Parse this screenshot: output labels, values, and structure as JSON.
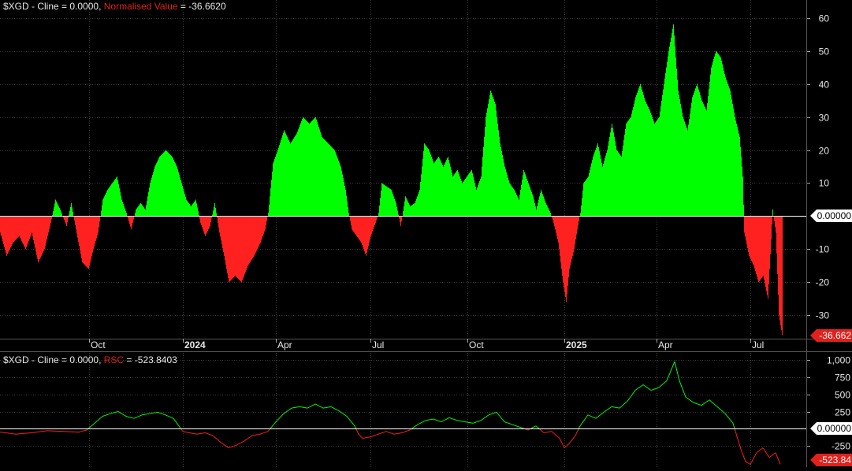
{
  "top_panel": {
    "symbol_label": "$XGD - Cline = 0.0000,",
    "indicator_name": "Normalised Value",
    "indicator_value_text": "= -36.6620",
    "zero_tag": "0.00000",
    "last_tag": "-36.662",
    "y_ticks": [
      "60",
      "50",
      "40",
      "30",
      "20",
      "10",
      "-10",
      "-20",
      "-30"
    ]
  },
  "bottom_panel": {
    "symbol_label": "$XGD - Cline = 0.0000,",
    "indicator_name": "RSC",
    "indicator_value_text": "= -523.8403",
    "zero_tag": "0.00000",
    "last_tag": "-523.84",
    "y_ticks": [
      "1,000",
      "750",
      "500",
      "250",
      "-250"
    ]
  },
  "colors": {
    "positive": "#00ff00",
    "negative": "#ff2020",
    "background": "#000000",
    "grid": "#3a3a3a",
    "zero_line": "#ffffff",
    "text": "#e8e8e8",
    "indicator_label": "#e0211d"
  },
  "chart_data": [
    {
      "type": "bar",
      "name": "Normalised Value",
      "x_labels": [
        "Oct",
        "2024",
        "Apr",
        "Jul",
        "Oct",
        "2025",
        "Apr",
        "Jul"
      ],
      "ylim": [
        -38,
        63
      ],
      "grid": true,
      "positive_color": "green",
      "negative_color": "red",
      "anchor_points": [
        [
          0,
          -5
        ],
        [
          8,
          -12
        ],
        [
          16,
          -8
        ],
        [
          24,
          -6
        ],
        [
          32,
          -10
        ],
        [
          40,
          -5
        ],
        [
          48,
          -14
        ],
        [
          56,
          -10
        ],
        [
          64,
          -2
        ],
        [
          70,
          5
        ],
        [
          76,
          2
        ],
        [
          84,
          -3
        ],
        [
          90,
          4
        ],
        [
          96,
          -4
        ],
        [
          104,
          -14
        ],
        [
          112,
          -16
        ],
        [
          118,
          -10
        ],
        [
          124,
          -5
        ],
        [
          130,
          5
        ],
        [
          136,
          8
        ],
        [
          142,
          10
        ],
        [
          148,
          12
        ],
        [
          154,
          5
        ],
        [
          160,
          1
        ],
        [
          166,
          -4
        ],
        [
          172,
          2
        ],
        [
          178,
          4
        ],
        [
          184,
          2
        ],
        [
          190,
          10
        ],
        [
          196,
          15
        ],
        [
          202,
          18
        ],
        [
          210,
          20
        ],
        [
          218,
          18
        ],
        [
          224,
          15
        ],
        [
          230,
          10
        ],
        [
          236,
          5
        ],
        [
          242,
          3
        ],
        [
          248,
          5
        ],
        [
          254,
          -2
        ],
        [
          260,
          -6
        ],
        [
          266,
          -3
        ],
        [
          272,
          4
        ],
        [
          278,
          -5
        ],
        [
          284,
          -12
        ],
        [
          290,
          -20
        ],
        [
          298,
          -18
        ],
        [
          306,
          -20
        ],
        [
          314,
          -15
        ],
        [
          322,
          -12
        ],
        [
          330,
          -8
        ],
        [
          336,
          -4
        ],
        [
          340,
          1
        ],
        [
          346,
          16
        ],
        [
          352,
          20
        ],
        [
          360,
          26
        ],
        [
          368,
          22
        ],
        [
          376,
          25
        ],
        [
          384,
          30
        ],
        [
          392,
          28
        ],
        [
          400,
          30
        ],
        [
          408,
          24
        ],
        [
          416,
          22
        ],
        [
          424,
          20
        ],
        [
          432,
          15
        ],
        [
          438,
          8
        ],
        [
          442,
          1
        ],
        [
          446,
          -4
        ],
        [
          452,
          -6
        ],
        [
          458,
          -8
        ],
        [
          464,
          -12
        ],
        [
          470,
          -6
        ],
        [
          476,
          -2
        ],
        [
          480,
          1
        ],
        [
          484,
          10
        ],
        [
          490,
          9
        ],
        [
          496,
          8
        ],
        [
          502,
          4
        ],
        [
          508,
          -3
        ],
        [
          514,
          6
        ],
        [
          520,
          3
        ],
        [
          526,
          4
        ],
        [
          532,
          8
        ],
        [
          538,
          22
        ],
        [
          544,
          20
        ],
        [
          550,
          16
        ],
        [
          556,
          18
        ],
        [
          562,
          15
        ],
        [
          568,
          18
        ],
        [
          574,
          12
        ],
        [
          580,
          14
        ],
        [
          586,
          10
        ],
        [
          592,
          12
        ],
        [
          598,
          14
        ],
        [
          604,
          8
        ],
        [
          610,
          12
        ],
        [
          616,
          30
        ],
        [
          622,
          38
        ],
        [
          628,
          34
        ],
        [
          634,
          22
        ],
        [
          640,
          15
        ],
        [
          646,
          10
        ],
        [
          652,
          8
        ],
        [
          658,
          5
        ],
        [
          664,
          14
        ],
        [
          670,
          10
        ],
        [
          676,
          6
        ],
        [
          680,
          2
        ],
        [
          686,
          8
        ],
        [
          692,
          4
        ],
        [
          698,
          1
        ],
        [
          702,
          -2
        ],
        [
          708,
          -8
        ],
        [
          714,
          -20
        ],
        [
          718,
          -26
        ],
        [
          722,
          -16
        ],
        [
          728,
          -10
        ],
        [
          732,
          -4
        ],
        [
          736,
          1
        ],
        [
          740,
          10
        ],
        [
          746,
          12
        ],
        [
          752,
          18
        ],
        [
          758,
          22
        ],
        [
          764,
          15
        ],
        [
          770,
          20
        ],
        [
          776,
          28
        ],
        [
          782,
          20
        ],
        [
          788,
          18
        ],
        [
          794,
          28
        ],
        [
          800,
          30
        ],
        [
          806,
          36
        ],
        [
          812,
          40
        ],
        [
          818,
          35
        ],
        [
          824,
          32
        ],
        [
          830,
          28
        ],
        [
          836,
          30
        ],
        [
          842,
          40
        ],
        [
          848,
          50
        ],
        [
          854,
          58
        ],
        [
          860,
          38
        ],
        [
          866,
          30
        ],
        [
          872,
          26
        ],
        [
          878,
          36
        ],
        [
          884,
          40
        ],
        [
          890,
          35
        ],
        [
          896,
          32
        ],
        [
          902,
          45
        ],
        [
          908,
          50
        ],
        [
          914,
          48
        ],
        [
          920,
          42
        ],
        [
          926,
          38
        ],
        [
          932,
          30
        ],
        [
          938,
          24
        ],
        [
          942,
          12
        ],
        [
          944,
          -5
        ],
        [
          950,
          -12
        ],
        [
          956,
          -15
        ],
        [
          962,
          -20
        ],
        [
          968,
          -18
        ],
        [
          974,
          -25
        ],
        [
          980,
          2
        ],
        [
          984,
          -5
        ],
        [
          988,
          -30
        ],
        [
          992,
          -36
        ]
      ]
    },
    {
      "type": "line",
      "name": "RSC",
      "x_labels": [
        "Oct",
        "2024",
        "Apr",
        "Jul",
        "Oct",
        "2025",
        "Apr",
        "Jul"
      ],
      "ylim": [
        -560,
        1060
      ],
      "grid": true,
      "positive_color": "green",
      "negative_color": "red",
      "anchor_points": [
        [
          0,
          -50
        ],
        [
          20,
          -80
        ],
        [
          40,
          -60
        ],
        [
          60,
          -30
        ],
        [
          80,
          -40
        ],
        [
          100,
          -50
        ],
        [
          110,
          -20
        ],
        [
          120,
          80
        ],
        [
          130,
          180
        ],
        [
          140,
          220
        ],
        [
          150,
          250
        ],
        [
          160,
          180
        ],
        [
          170,
          150
        ],
        [
          180,
          200
        ],
        [
          190,
          220
        ],
        [
          200,
          240
        ],
        [
          210,
          200
        ],
        [
          220,
          150
        ],
        [
          232,
          -40
        ],
        [
          240,
          -60
        ],
        [
          250,
          -80
        ],
        [
          260,
          -60
        ],
        [
          270,
          -100
        ],
        [
          280,
          -200
        ],
        [
          290,
          -280
        ],
        [
          300,
          -240
        ],
        [
          310,
          -180
        ],
        [
          320,
          -100
        ],
        [
          330,
          -80
        ],
        [
          340,
          -40
        ],
        [
          350,
          100
        ],
        [
          360,
          220
        ],
        [
          370,
          300
        ],
        [
          380,
          320
        ],
        [
          390,
          300
        ],
        [
          400,
          360
        ],
        [
          410,
          300
        ],
        [
          420,
          320
        ],
        [
          430,
          260
        ],
        [
          440,
          180
        ],
        [
          450,
          40
        ],
        [
          455,
          -80
        ],
        [
          460,
          -140
        ],
        [
          470,
          -120
        ],
        [
          480,
          -80
        ],
        [
          490,
          -40
        ],
        [
          500,
          -80
        ],
        [
          510,
          -60
        ],
        [
          520,
          -20
        ],
        [
          530,
          60
        ],
        [
          540,
          120
        ],
        [
          550,
          140
        ],
        [
          560,
          100
        ],
        [
          570,
          160
        ],
        [
          580,
          120
        ],
        [
          590,
          100
        ],
        [
          600,
          80
        ],
        [
          610,
          120
        ],
        [
          620,
          200
        ],
        [
          630,
          240
        ],
        [
          640,
          100
        ],
        [
          650,
          60
        ],
        [
          660,
          20
        ],
        [
          670,
          -20
        ],
        [
          680,
          40
        ],
        [
          690,
          -60
        ],
        [
          700,
          -40
        ],
        [
          710,
          -140
        ],
        [
          716,
          -280
        ],
        [
          722,
          -220
        ],
        [
          730,
          -100
        ],
        [
          736,
          40
        ],
        [
          746,
          200
        ],
        [
          756,
          150
        ],
        [
          766,
          240
        ],
        [
          776,
          320
        ],
        [
          786,
          300
        ],
        [
          796,
          400
        ],
        [
          806,
          560
        ],
        [
          816,
          640
        ],
        [
          826,
          560
        ],
        [
          836,
          600
        ],
        [
          846,
          700
        ],
        [
          856,
          980
        ],
        [
          862,
          700
        ],
        [
          870,
          460
        ],
        [
          880,
          380
        ],
        [
          890,
          340
        ],
        [
          900,
          420
        ],
        [
          910,
          320
        ],
        [
          920,
          220
        ],
        [
          930,
          80
        ],
        [
          940,
          -300
        ],
        [
          946,
          -480
        ],
        [
          952,
          -520
        ],
        [
          960,
          -350
        ],
        [
          968,
          -280
        ],
        [
          976,
          -420
        ],
        [
          984,
          -350
        ],
        [
          990,
          -520
        ]
      ]
    }
  ]
}
